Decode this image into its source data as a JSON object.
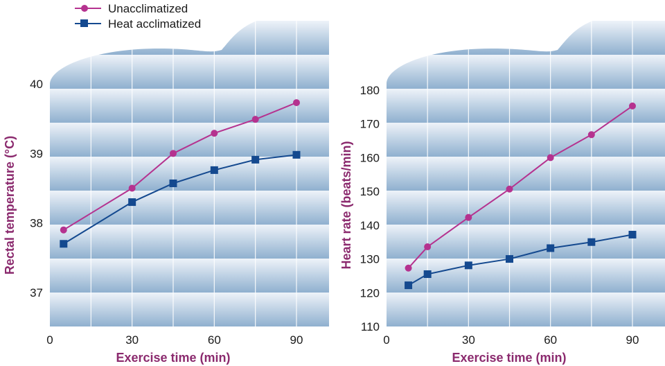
{
  "legend": {
    "unacclimatized": "Unacclimatized",
    "heat_acclimatized": "Heat acclimatized"
  },
  "colors": {
    "unacclimatized": "#b5328f",
    "heat_acclimatized": "#14498f",
    "axis_title": "#8b2a6e",
    "band_dark": "#8fb0cf",
    "band_light": "#eef3f9"
  },
  "chart_data": [
    {
      "type": "line",
      "title": "",
      "xlabel": "Exercise time (min)",
      "ylabel": "Rectal temperature (°C)",
      "xlim": [
        0,
        100
      ],
      "ylim": [
        36.5,
        40.5
      ],
      "xticks": [
        0,
        30,
        60,
        90
      ],
      "yticks": [
        37,
        38,
        39,
        40
      ],
      "grid": true,
      "series": [
        {
          "name": "Unacclimatized",
          "marker": "circle",
          "x": [
            5,
            30,
            45,
            60,
            75,
            90
          ],
          "y": [
            37.9,
            38.5,
            39.0,
            39.29,
            39.49,
            39.73
          ]
        },
        {
          "name": "Heat acclimatized",
          "marker": "square",
          "x": [
            5,
            30,
            45,
            60,
            75,
            90
          ],
          "y": [
            37.7,
            38.3,
            38.57,
            38.76,
            38.91,
            38.98
          ]
        }
      ]
    },
    {
      "type": "line",
      "title": "",
      "xlabel": "Exercise time (min)",
      "ylabel": "Heart rate (beats/min)",
      "xlim": [
        0,
        100
      ],
      "ylim": [
        110,
        190
      ],
      "xticks": [
        0,
        30,
        60,
        90
      ],
      "yticks": [
        110,
        120,
        130,
        140,
        150,
        160,
        170,
        180
      ],
      "grid": true,
      "series": [
        {
          "name": "Unacclimatized",
          "marker": "circle",
          "x": [
            8,
            15,
            30,
            45,
            60,
            75,
            90
          ],
          "y": [
            127.3,
            133.6,
            142.3,
            150.7,
            160,
            166.8,
            175.3
          ]
        },
        {
          "name": "Heat acclimatized",
          "marker": "square",
          "x": [
            8,
            15,
            30,
            45,
            60,
            75,
            90
          ],
          "y": [
            122.2,
            125.5,
            128.1,
            130,
            133.2,
            135,
            137.2
          ]
        }
      ]
    }
  ]
}
